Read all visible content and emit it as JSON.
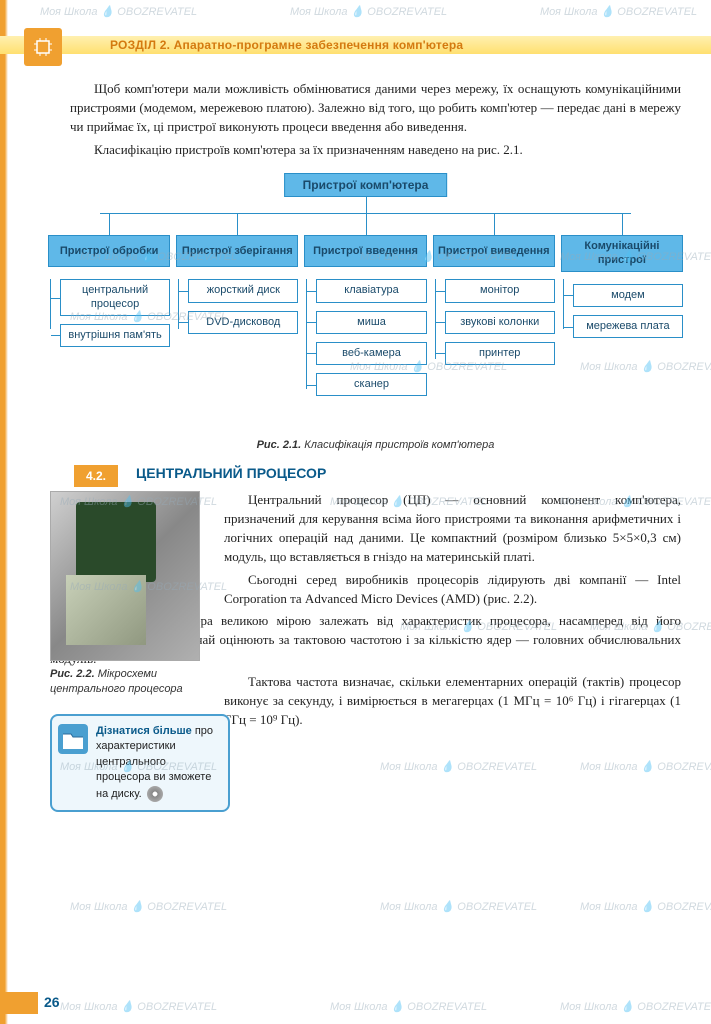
{
  "header": {
    "title": "РОЗДІЛ 2. Апаратно-програмне  забезпечення комп'ютера"
  },
  "paragraphs": {
    "p1": "Щоб комп'ютери мали можливість обмінюватися даними через мережу, їх оснащують комунікаційними пристроями (модемом, мережевою платою). Залежно від того, що робить комп'ютер — передає дані в мережу чи приймає їх, ці пристрої виконують процеси введення або виведення.",
    "p2": "Класифікацію пристроїв комп'ютера за їх призначенням наведено на рис. 2.1."
  },
  "diagram": {
    "root": "Пристрої комп'ютера",
    "categories": [
      {
        "head": "Пристрої обробки",
        "items": [
          "центральний процесор",
          "внутрішня пам'ять"
        ]
      },
      {
        "head": "Пристрої зберігання",
        "items": [
          "жорсткий диск",
          "DVD-дисковод"
        ]
      },
      {
        "head": "Пристрої введення",
        "items": [
          "клавіатура",
          "миша",
          "веб-камера",
          "сканер"
        ]
      },
      {
        "head": "Пристрої виведення",
        "items": [
          "монітор",
          "звукові колонки",
          "принтер"
        ]
      },
      {
        "head": "Комунікаційні пристрої",
        "items": [
          "модем",
          "мережева плата"
        ]
      }
    ],
    "caption_label": "Рис. 2.1.",
    "caption_text": " Класифікація пристроїв комп'ютера"
  },
  "section": {
    "number": "4.2.",
    "title": "ЦЕНТРАЛЬНИЙ ПРОЦЕСОР"
  },
  "cpu": {
    "p1": "Центральний процесор (ЦП) — основний компонент комп'ютера, призначений для керування всіма його пристроями та виконання арифметичних і логічних операцій над даними. Це компактний (розміром близько 5×5×0,3 см) модуль, що вставляється в гніздо на материнській платі.",
    "p2": "Сьогодні серед виробників процесорів лідирують дві компанії — Intel Corporation та Advanced Micro Devices (AMD) (рис. 2.2).",
    "p3": "Можливості комп'ютера великою мірою залежать від характеристик процесора, насамперед від його продуктивності, яку зазвичай оцінюють за тактовою частотою і за кількістю ядер — головних обчислювальних модулів.",
    "p4": "Тактова частота визначає, скільки елементарних операцій (тактів) процесор виконує за секунду, і вимірюється в мегагерцах (1 МГц = 10⁶ Гц) і гігагерцах (1 ГГц = 10⁹ Гц).",
    "caption_label": "Рис. 2.2.",
    "caption_text": " Мікросхеми центрального процесора"
  },
  "infobox": {
    "title": "Дізнатися більше",
    "text": " про характеристики центрального процесора ви зможете на диску."
  },
  "page_number": "26",
  "watermark_text": "Моя Школа 💧 OBOZREVATEL",
  "colors": {
    "orange": "#f0a030",
    "blue_header": "#5fb8e8",
    "blue_border": "#2a8fc8",
    "blue_text": "#0a5a8a"
  }
}
